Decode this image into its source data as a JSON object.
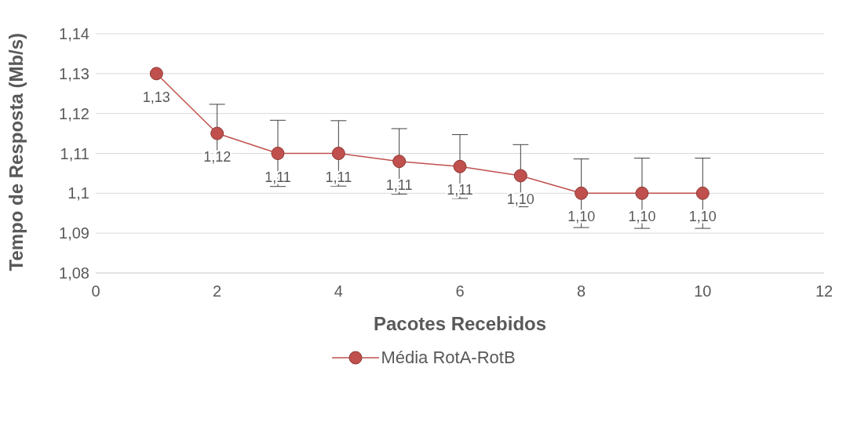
{
  "chart_data": {
    "type": "line",
    "xlabel": "Pacotes Recebidos",
    "ylabel": "Tempo de Resposta (Mb/s)",
    "x": [
      1,
      2,
      3,
      4,
      5,
      6,
      7,
      8,
      9,
      10
    ],
    "series": [
      {
        "name": "Média RotA-RotB",
        "color": "#c0504d",
        "values": [
          1.13,
          1.115,
          1.11,
          1.11,
          1.108,
          1.1067,
          1.1044,
          1.1,
          1.1,
          1.1
        ],
        "errors": [
          null,
          0.0073,
          0.0083,
          0.0082,
          0.0082,
          0.008,
          0.0078,
          0.0086,
          0.0088,
          0.0088
        ],
        "value_labels": [
          "1,13",
          "1,12",
          "1,11",
          "1,11",
          "1,11",
          "1,11",
          "1,10",
          "1,10",
          "1,10",
          "1,10"
        ]
      }
    ],
    "xlim": [
      0,
      12
    ],
    "xticks": [
      0,
      2,
      4,
      6,
      8,
      10,
      12
    ],
    "ylim": [
      1.08,
      1.14
    ],
    "yticks": [
      {
        "value": 1.08,
        "label": "1,08"
      },
      {
        "value": 1.09,
        "label": "1,09"
      },
      {
        "value": 1.1,
        "label": "1,1"
      },
      {
        "value": 1.11,
        "label": "1,11"
      },
      {
        "value": 1.12,
        "label": "1,12"
      },
      {
        "value": 1.13,
        "label": "1,13"
      },
      {
        "value": 1.14,
        "label": "1,14"
      }
    ],
    "grid": "y",
    "legend": "bottom",
    "marker": "circle",
    "line_style": "solid"
  }
}
